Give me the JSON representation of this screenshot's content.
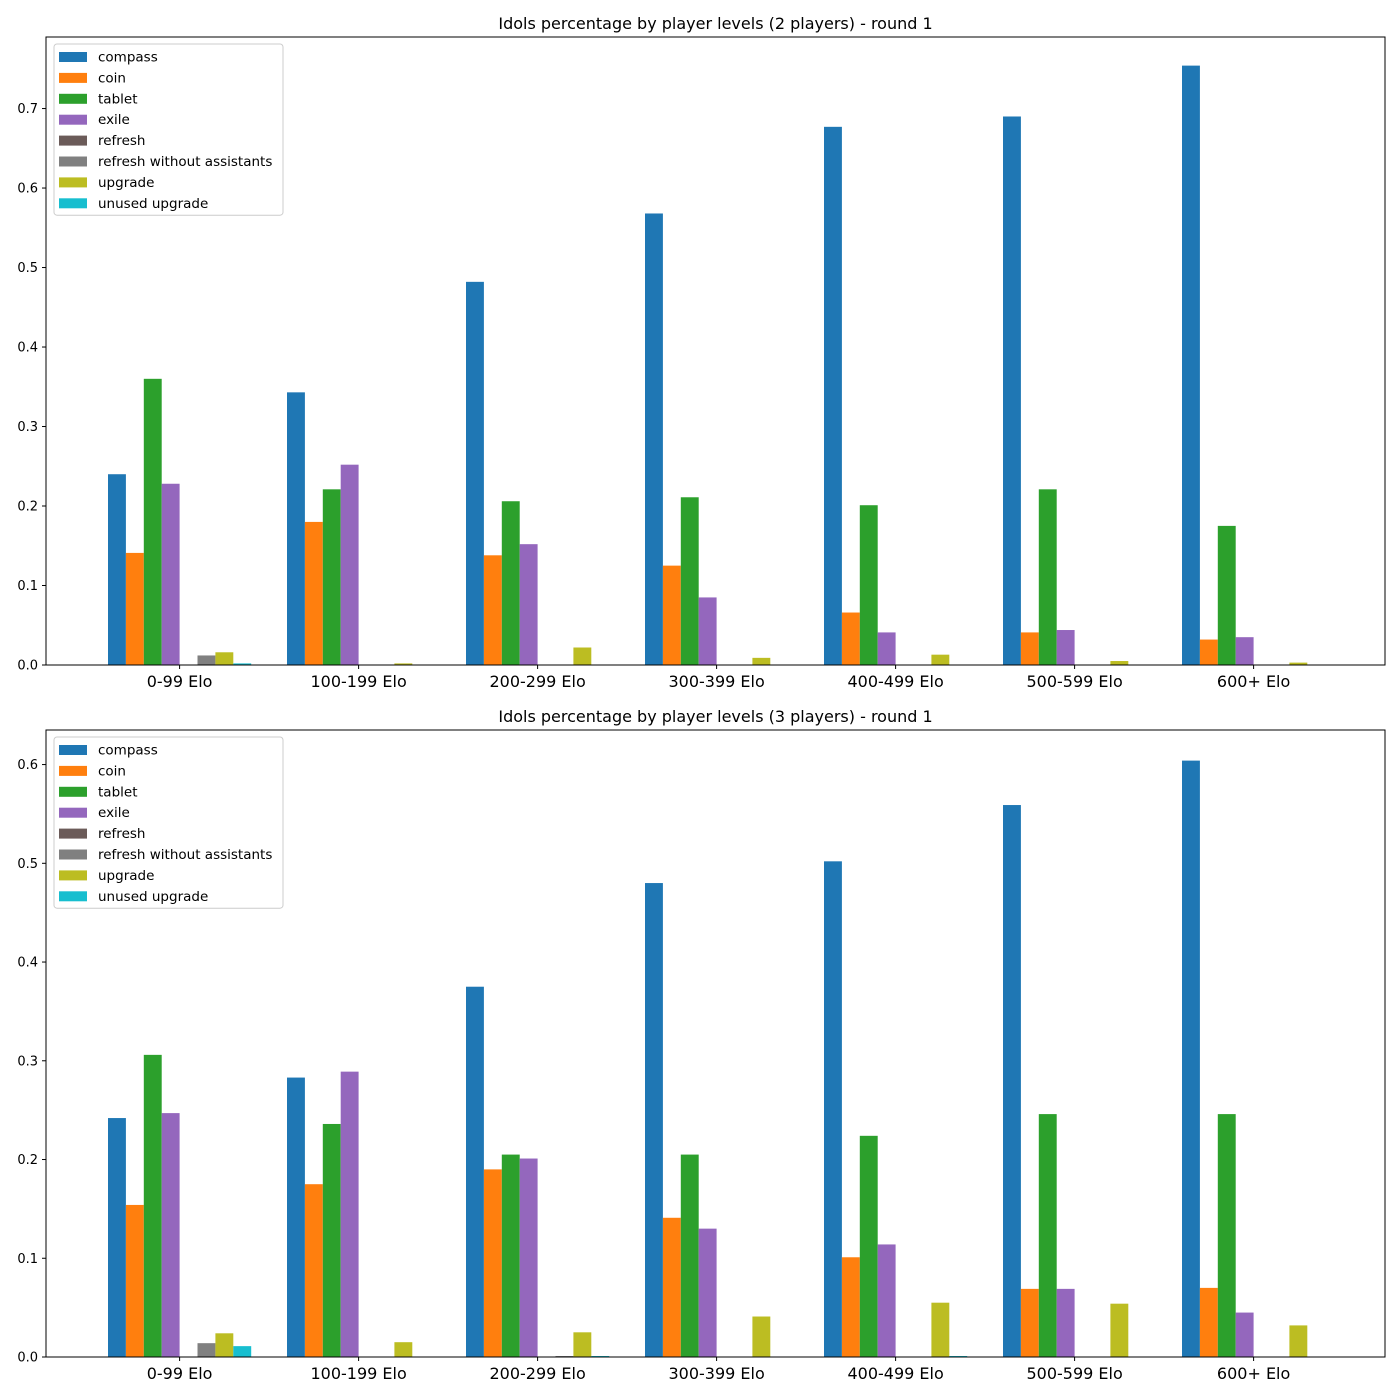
{
  "colors": {
    "compass": "#1f77b4",
    "coin": "#ff7f0e",
    "tablet": "#2ca02c",
    "exile": "#9467bd",
    "refresh": "#6b5b59",
    "refresh without assistants": "#808080",
    "upgrade": "#bcbd22",
    "unused upgrade": "#17becf"
  },
  "chart_data": [
    {
      "type": "bar",
      "title": "Idols percentage by player levels (2 players) - round 1",
      "categories": [
        "0-99 Elo",
        "100-199 Elo",
        "200-299 Elo",
        "300-399 Elo",
        "400-499 Elo",
        "500-599 Elo",
        "600+ Elo"
      ],
      "ylim": [
        0,
        0.79
      ],
      "yticks": [
        "0.0",
        "0.1",
        "0.2",
        "0.3",
        "0.4",
        "0.5",
        "0.6",
        "0.7"
      ],
      "legend_position": "upper-left",
      "series": [
        {
          "name": "compass",
          "values": [
            0.24,
            0.343,
            0.482,
            0.568,
            0.677,
            0.69,
            0.754
          ]
        },
        {
          "name": "coin",
          "values": [
            0.141,
            0.18,
            0.138,
            0.125,
            0.066,
            0.041,
            0.032
          ]
        },
        {
          "name": "tablet",
          "values": [
            0.36,
            0.221,
            0.206,
            0.211,
            0.201,
            0.221,
            0.175
          ]
        },
        {
          "name": "exile",
          "values": [
            0.228,
            0.252,
            0.152,
            0.085,
            0.041,
            0.044,
            0.035
          ]
        },
        {
          "name": "refresh",
          "values": [
            0.0,
            0.0,
            0.0,
            0.0,
            0.0,
            0.0,
            0.0
          ]
        },
        {
          "name": "refresh without assistants",
          "values": [
            0.012,
            0.0,
            0.0,
            0.0,
            0.0,
            0.0,
            0.0
          ]
        },
        {
          "name": "upgrade",
          "values": [
            0.016,
            0.002,
            0.022,
            0.009,
            0.013,
            0.005,
            0.003
          ]
        },
        {
          "name": "unused upgrade",
          "values": [
            0.002,
            0.0,
            0.0,
            0.0,
            0.0,
            0.0,
            0.0
          ]
        }
      ]
    },
    {
      "type": "bar",
      "title": "Idols percentage by player levels (3 players) - round 1",
      "categories": [
        "0-99 Elo",
        "100-199 Elo",
        "200-299 Elo",
        "300-399 Elo",
        "400-499 Elo",
        "500-599 Elo",
        "600+ Elo"
      ],
      "ylim": [
        0,
        0.635
      ],
      "yticks": [
        "0.0",
        "0.1",
        "0.2",
        "0.3",
        "0.4",
        "0.5",
        "0.6"
      ],
      "legend_position": "upper-left",
      "series": [
        {
          "name": "compass",
          "values": [
            0.242,
            0.283,
            0.375,
            0.48,
            0.502,
            0.559,
            0.604
          ]
        },
        {
          "name": "coin",
          "values": [
            0.154,
            0.175,
            0.19,
            0.141,
            0.101,
            0.069,
            0.07
          ]
        },
        {
          "name": "tablet",
          "values": [
            0.306,
            0.236,
            0.205,
            0.205,
            0.224,
            0.246,
            0.246
          ]
        },
        {
          "name": "exile",
          "values": [
            0.247,
            0.289,
            0.201,
            0.13,
            0.114,
            0.069,
            0.045
          ]
        },
        {
          "name": "refresh",
          "values": [
            0.0,
            0.0,
            0.0,
            0.0,
            0.0,
            0.0,
            0.0
          ]
        },
        {
          "name": "refresh without assistants",
          "values": [
            0.014,
            0.0,
            0.001,
            0.0,
            0.0,
            0.0,
            0.0
          ]
        },
        {
          "name": "upgrade",
          "values": [
            0.024,
            0.015,
            0.025,
            0.041,
            0.055,
            0.054,
            0.032
          ]
        },
        {
          "name": "unused upgrade",
          "values": [
            0.011,
            0.0,
            0.001,
            0.0,
            0.001,
            0.0,
            0.0
          ]
        }
      ]
    }
  ]
}
